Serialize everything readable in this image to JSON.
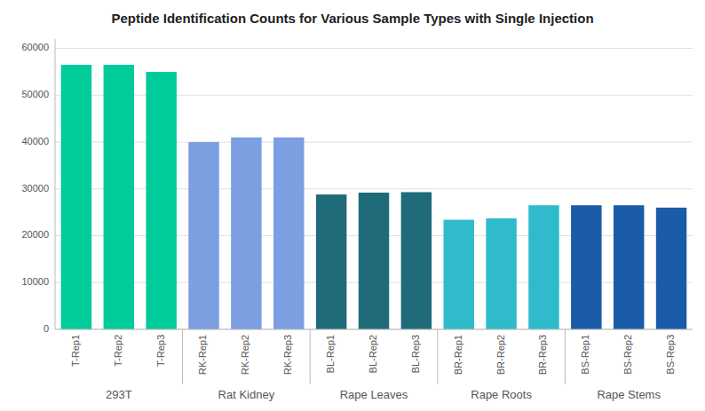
{
  "chart_data": {
    "type": "bar",
    "title": "Peptide Identification Counts for Various Sample Types with Single Injection",
    "categories": [
      "T-Rep1",
      "T-Rep2",
      "T-Rep3",
      "RK-Rep1",
      "RK-Rep2",
      "RK-Rep3",
      "BL-Rep1",
      "BL-Rep2",
      "BL-Rep3",
      "BR-Rep1",
      "BR-Rep2",
      "BR-Rep3",
      "BS-Rep1",
      "BS-Rep2",
      "BS-Rep3"
    ],
    "values": [
      56500,
      56500,
      55000,
      40000,
      41000,
      41000,
      28800,
      29200,
      29300,
      23400,
      23700,
      26500,
      26500,
      26500,
      26000
    ],
    "colors": [
      "#00CC99",
      "#00CC99",
      "#00CC99",
      "#7B9FE0",
      "#7B9FE0",
      "#7B9FE0",
      "#1F6B7A",
      "#1F6B7A",
      "#1F6B7A",
      "#30BBCC",
      "#30BBCC",
      "#30BBCC",
      "#1A5CA8",
      "#1A5CA8",
      "#1A5CA8"
    ],
    "groups": [
      {
        "label": "293T",
        "members": [
          "T-Rep1",
          "T-Rep2",
          "T-Rep3"
        ]
      },
      {
        "label": "Rat Kidney",
        "members": [
          "RK-Rep1",
          "RK-Rep2",
          "RK-Rep3"
        ]
      },
      {
        "label": "Rape Leaves",
        "members": [
          "BL-Rep1",
          "BL-Rep2",
          "BL-Rep3"
        ]
      },
      {
        "label": "Rape Roots",
        "members": [
          "BR-Rep1",
          "BR-Rep2",
          "BR-Rep3"
        ]
      },
      {
        "label": "Rape Stems",
        "members": [
          "BS-Rep1",
          "BS-Rep2",
          "BS-Rep3"
        ]
      }
    ],
    "ylim": [
      0,
      62000
    ],
    "yticks": [
      0,
      10000,
      20000,
      30000,
      40000,
      50000,
      60000
    ],
    "grid": true
  }
}
